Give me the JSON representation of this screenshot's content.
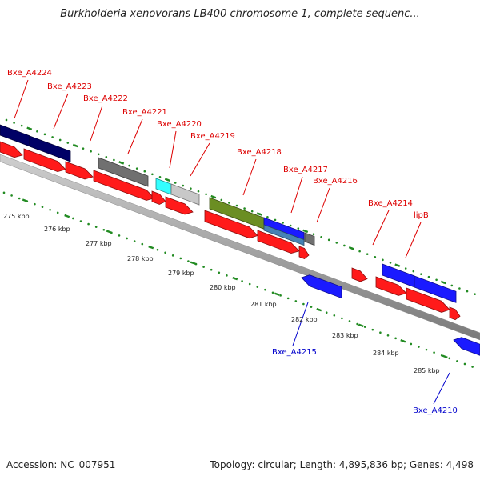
{
  "title": "Burkholderia xenovorans LB400 chromosome 1, complete sequenc...",
  "footer": {
    "accession": "Accession: NC_007951",
    "topology": "Topology: circular; Length: 4,895,836 bp; Genes: 4,498"
  },
  "colors": {
    "gene_red": "#ff1a1a",
    "gene_blue": "#1a1aff",
    "dark_navy": "#000066",
    "gray": "#707070",
    "light_gray": "#c8c8c8",
    "cyan": "#33ffff",
    "olive": "#6b8e23",
    "steel": "#4682b4",
    "dot_green": "#228b22",
    "label_red": "#dd0000",
    "label_blue": "#0000cc",
    "backbone": "#9a9a9a"
  },
  "scale_labels": [
    "275 kbp",
    "276 kbp",
    "277 kbp",
    "278 kbp",
    "279 kbp",
    "280 kbp",
    "281 kbp",
    "282 kbp",
    "283 kbp",
    "284 kbp",
    "285 kbp"
  ],
  "gene_labels": [
    "Bxe_A4224",
    "Bxe_A4223",
    "Bxe_A4222",
    "Bxe_A4221",
    "Bxe_A4220",
    "Bxe_A4219",
    "Bxe_A4218",
    "Bxe_A4217",
    "Bxe_A4216",
    "Bxe_A4214",
    "lipB",
    "Bxe_A4215",
    "Bxe_A4210"
  ]
}
